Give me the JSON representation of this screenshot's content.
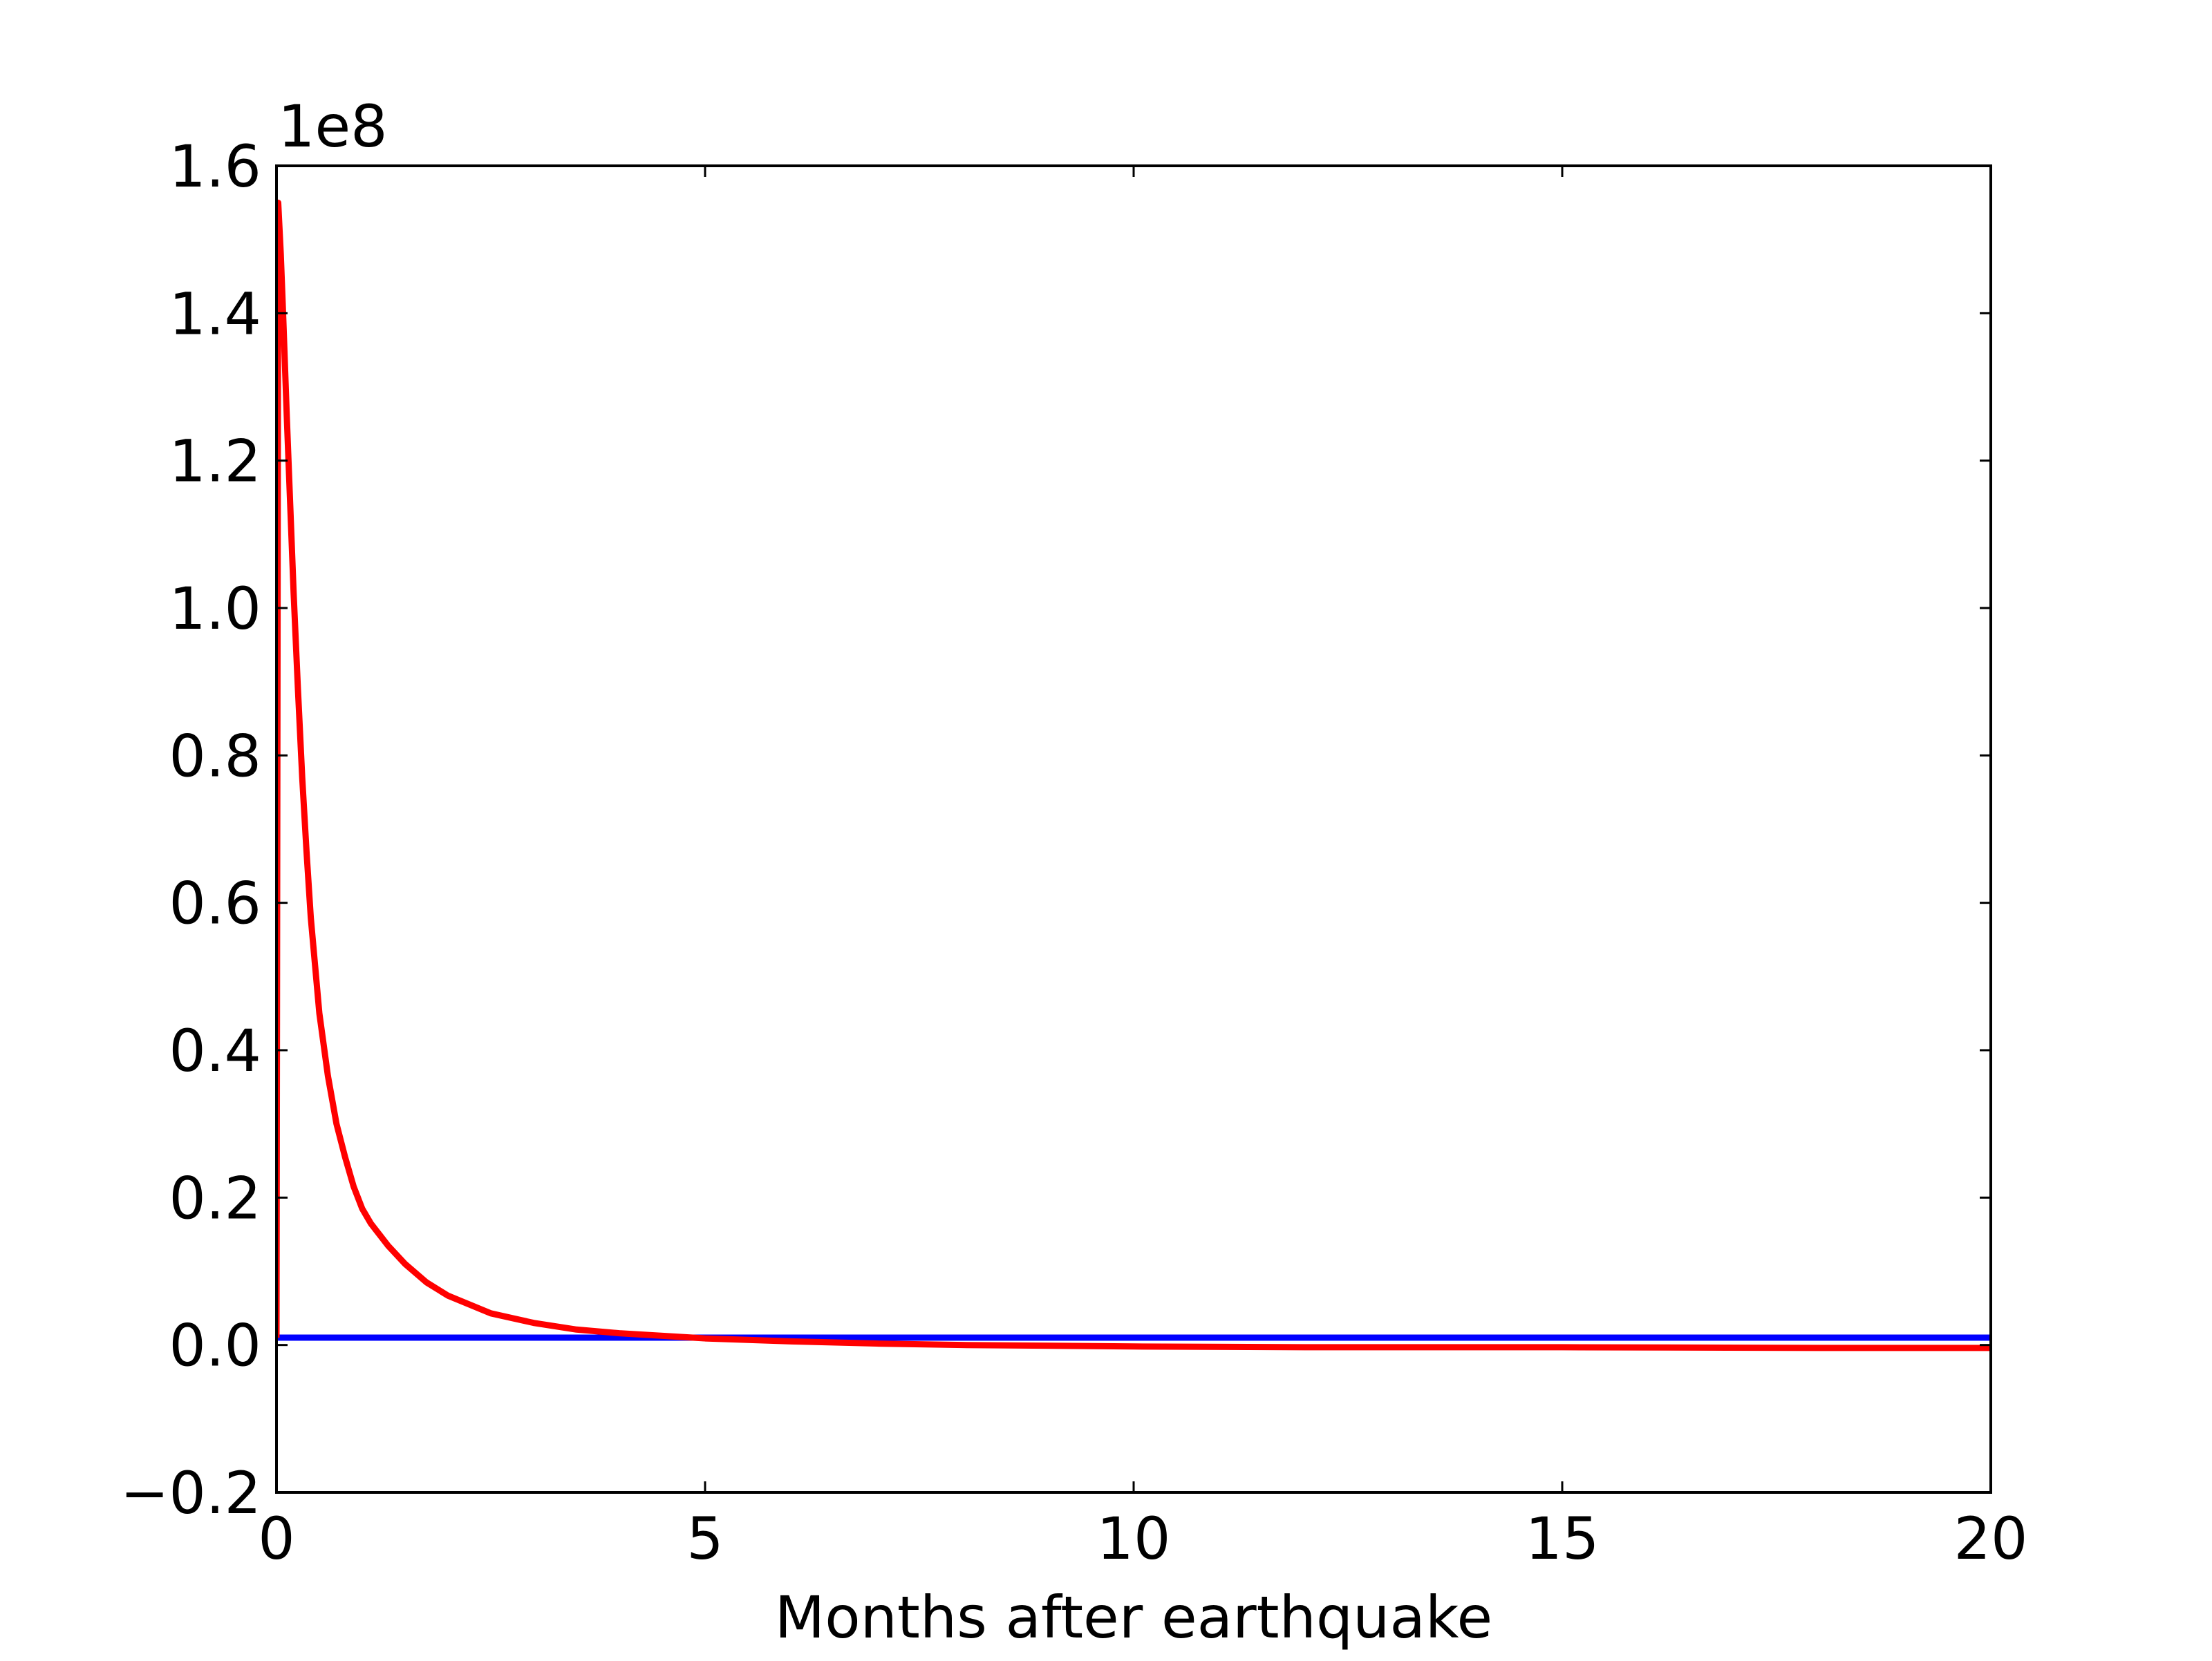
{
  "chart_data": {
    "type": "line",
    "title": "",
    "xlabel": "Months after earthquake",
    "ylabel": "",
    "y_offset_text": "1e8",
    "y_scale_factor": 100000000,
    "xlim": [
      0,
      20
    ],
    "ylim": [
      -0.2,
      1.6
    ],
    "xticks": [
      0,
      5,
      10,
      15,
      20
    ],
    "xtick_labels": [
      "0",
      "5",
      "10",
      "15",
      "20"
    ],
    "yticks": [
      -0.2,
      0.0,
      0.2,
      0.4,
      0.6,
      0.8,
      1.0,
      1.2,
      1.4,
      1.6
    ],
    "ytick_labels": [
      "−0.2",
      "0.0",
      "0.2",
      "0.4",
      "0.6",
      "0.8",
      "1.0",
      "1.2",
      "1.4",
      "1.6"
    ],
    "grid": false,
    "legend": "none",
    "series": [
      {
        "color": "#0000ff",
        "x": [
          0,
          0.05,
          20
        ],
        "y": [
          0.01,
          0.01,
          0.01
        ]
      },
      {
        "color": "#ff0000",
        "x": [
          0.0,
          0.02,
          0.05,
          0.08,
          0.12,
          0.16,
          0.2,
          0.25,
          0.3,
          0.35,
          0.4,
          0.5,
          0.6,
          0.7,
          0.8,
          0.9,
          1.0,
          1.1,
          1.2,
          1.3,
          1.5,
          1.75,
          2.0,
          2.5,
          3.0,
          3.5,
          4.0,
          5.0,
          6.0,
          7.0,
          8.0,
          10.0,
          12.0,
          15.0,
          18.0,
          20.0
        ],
        "y": [
          0.01,
          1.55,
          1.48,
          1.39,
          1.26,
          1.14,
          1.02,
          0.89,
          0.77,
          0.67,
          0.58,
          0.45,
          0.365,
          0.3,
          0.255,
          0.215,
          0.185,
          0.165,
          0.15,
          0.135,
          0.11,
          0.085,
          0.067,
          0.043,
          0.03,
          0.021,
          0.016,
          0.009,
          0.005,
          0.002,
          0.0,
          -0.002,
          -0.003,
          -0.003,
          -0.004,
          -0.004
        ]
      }
    ]
  }
}
